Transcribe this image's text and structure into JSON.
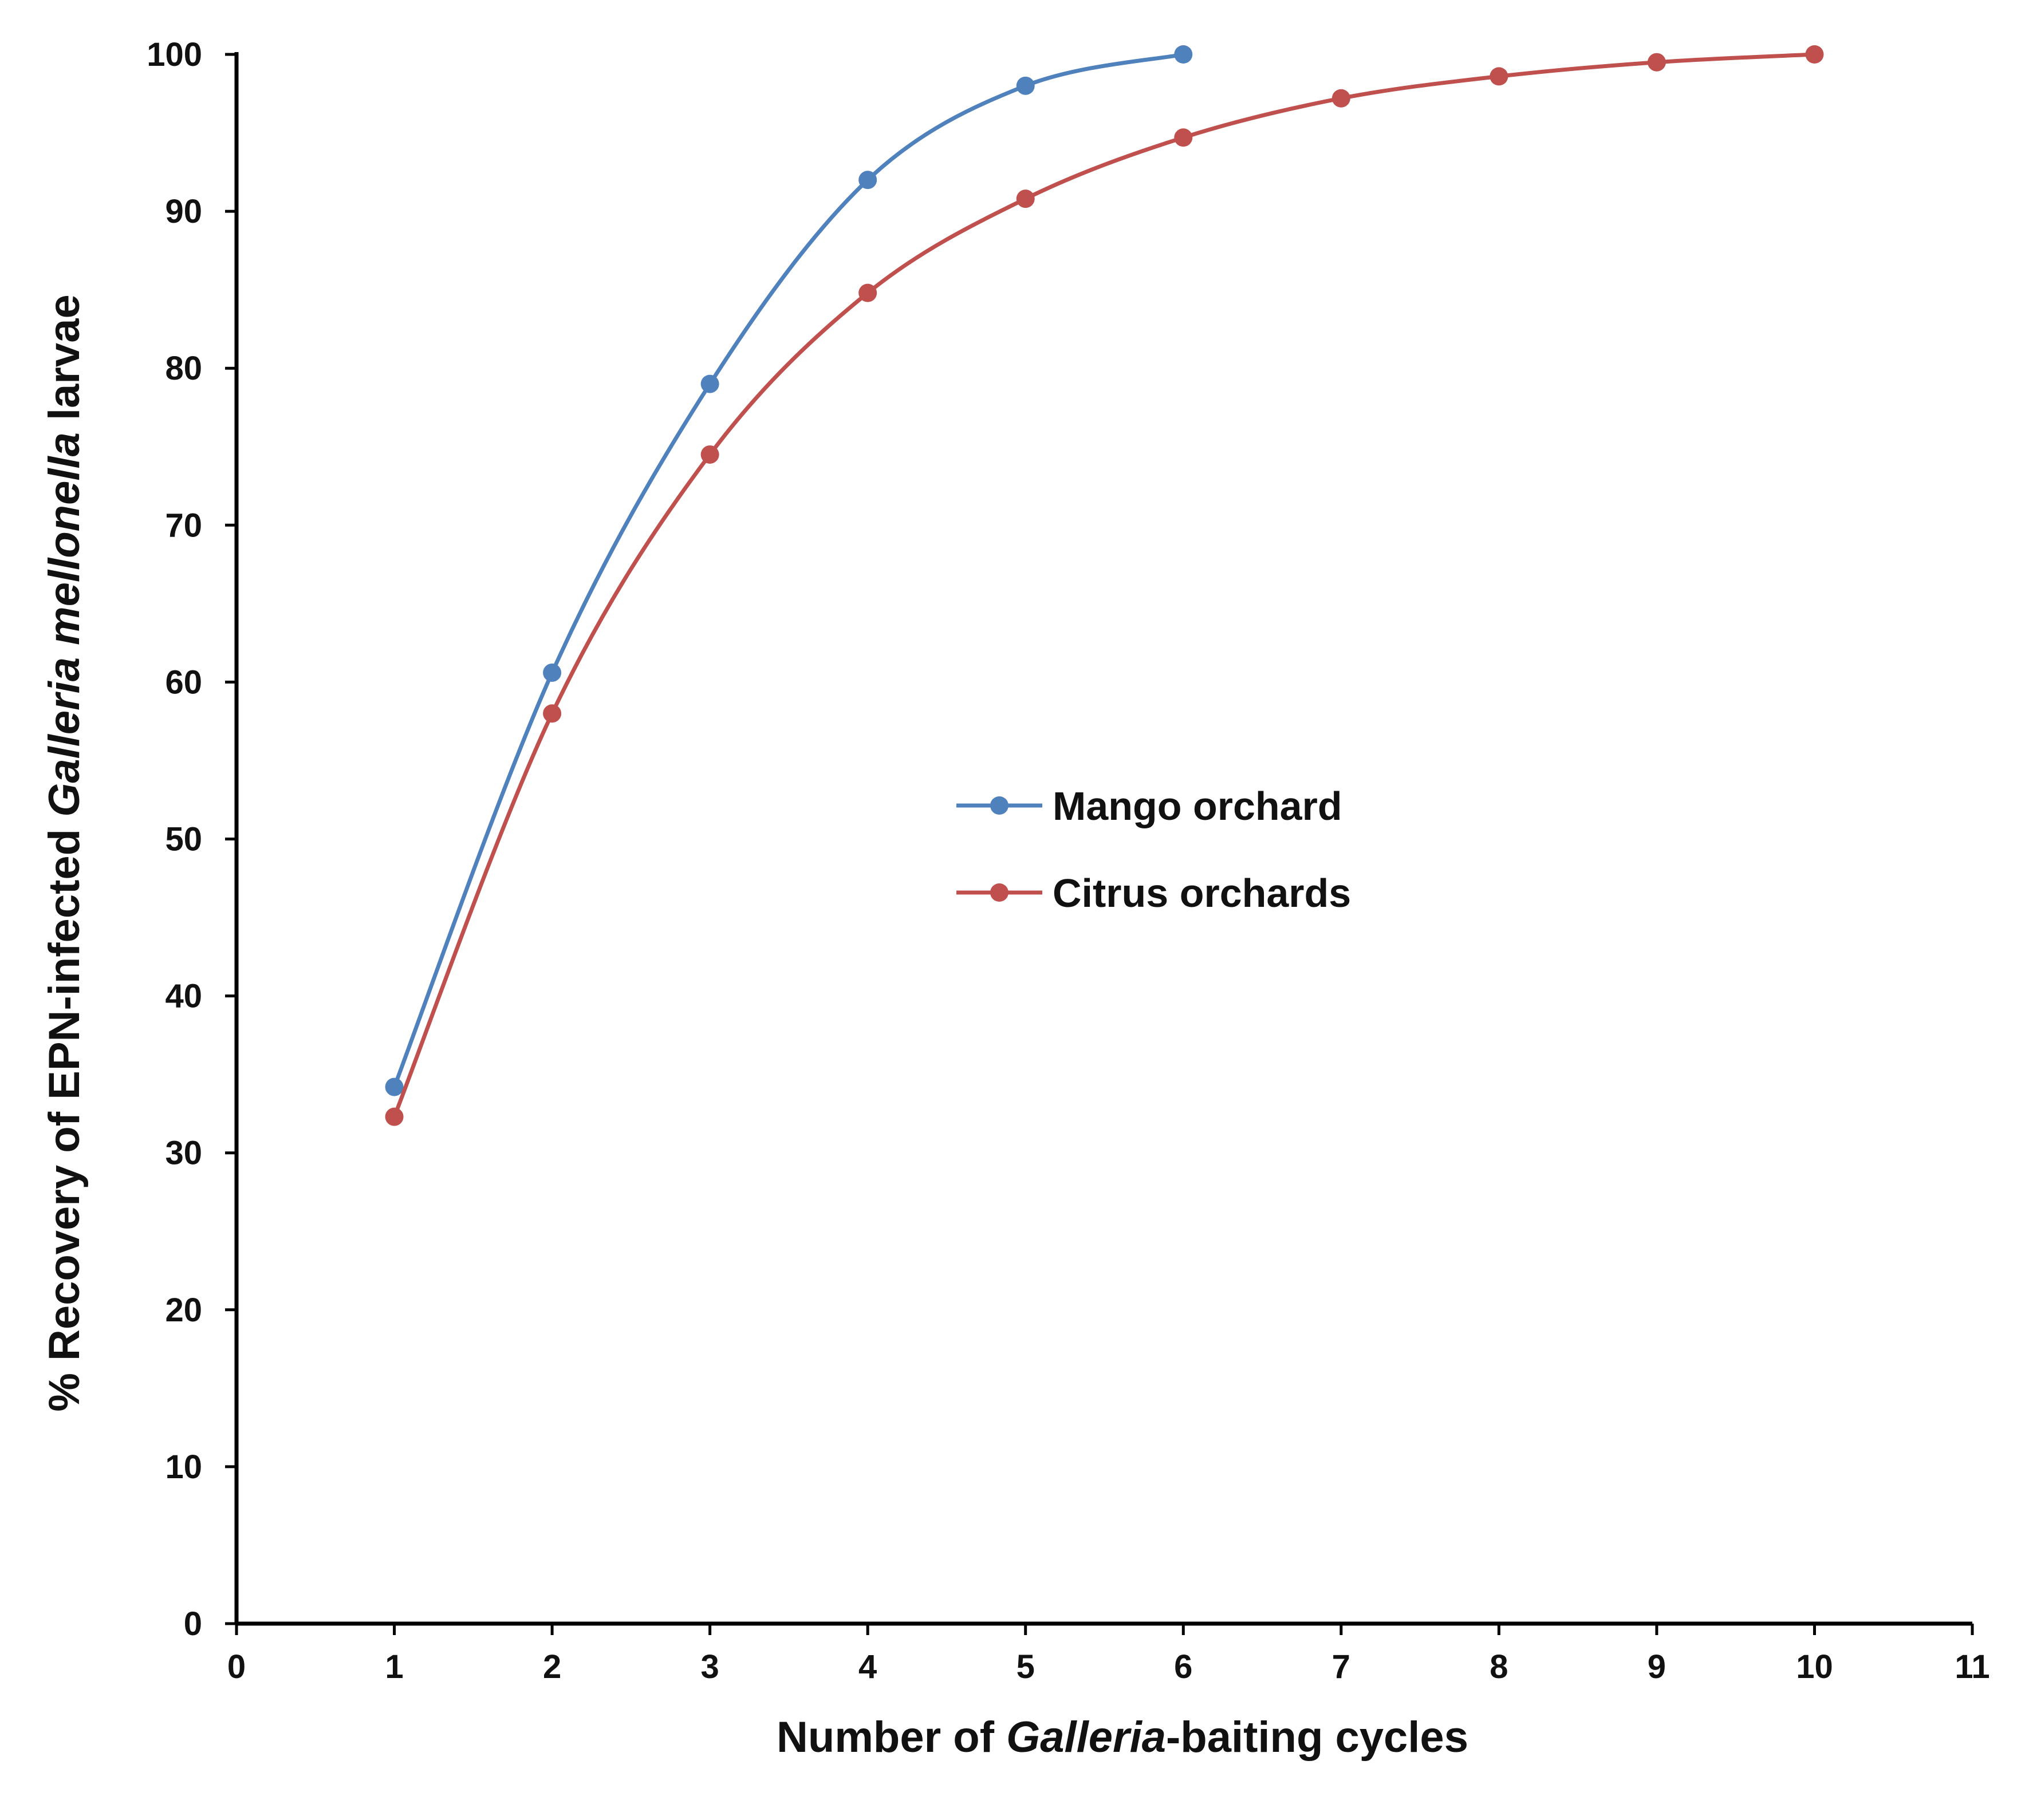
{
  "chart_data": {
    "type": "line",
    "smooth": true,
    "xlabel": {
      "prefix": "Number of ",
      "italic": "Galleria",
      "suffix": "-baiting cycles"
    },
    "ylabel": {
      "prefix": "% Recovery of EPN-infected ",
      "italic": "Galleria mellonella",
      "suffix": " larvae"
    },
    "xlim": [
      0,
      11
    ],
    "ylim": [
      0,
      100
    ],
    "xticks": [
      "0",
      "1",
      "2",
      "3",
      "4",
      "5",
      "6",
      "7",
      "8",
      "9",
      "10",
      "11"
    ],
    "yticks": [
      "0",
      "10",
      "20",
      "30",
      "40",
      "50",
      "60",
      "70",
      "80",
      "90",
      "100"
    ],
    "grid": false,
    "legend_position": "center",
    "series": [
      {
        "name": "Mango orchard",
        "color": "#4f81bd",
        "x": [
          1,
          2,
          3,
          4,
          5,
          6
        ],
        "values": [
          34.2,
          60.6,
          79.0,
          92.0,
          98.0,
          100.0
        ]
      },
      {
        "name": "Citrus orchards",
        "color": "#c0504d",
        "x": [
          1,
          2,
          3,
          4,
          5,
          6,
          7,
          8,
          9,
          10
        ],
        "values": [
          32.3,
          58.0,
          74.5,
          84.8,
          90.8,
          94.7,
          97.2,
          98.6,
          99.5,
          100.0
        ]
      }
    ]
  }
}
